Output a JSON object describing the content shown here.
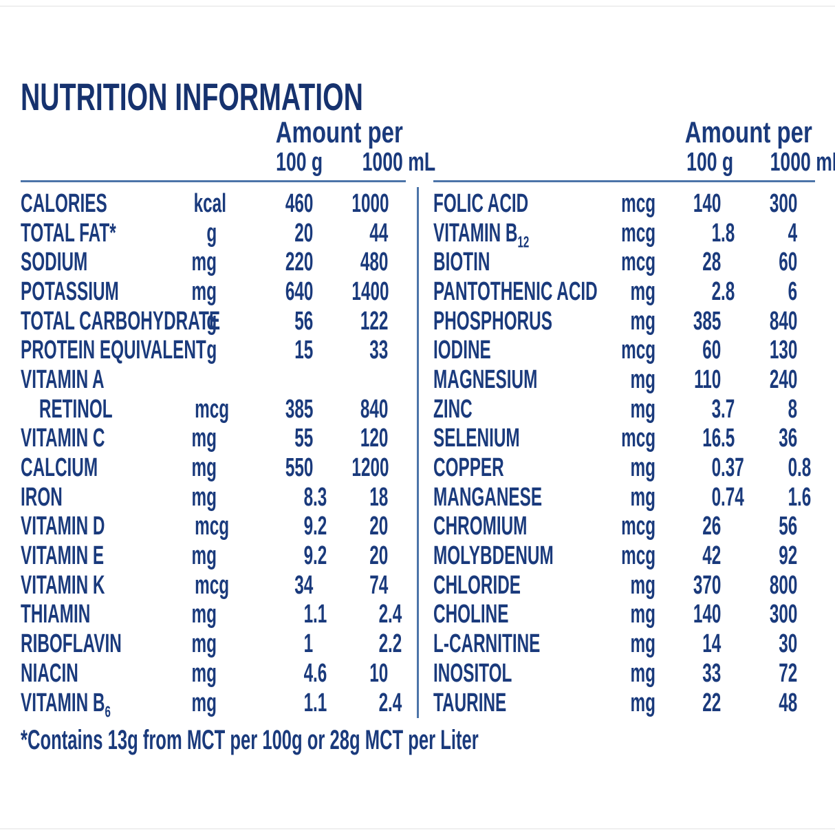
{
  "title": "NUTRITION INFORMATION",
  "table": {
    "header": {
      "amount_per": "Amount per",
      "col_100g": "100 g",
      "col_1000ml": "1000 mL"
    },
    "left_rows": [
      {
        "label": "CALORIES",
        "unit": "kcal",
        "per_100g": "460",
        "per_1000ml": "1000"
      },
      {
        "label": "TOTAL FAT*",
        "unit": "g",
        "per_100g": "20",
        "per_1000ml": "44"
      },
      {
        "label": "SODIUM",
        "unit": "mg",
        "per_100g": "220",
        "per_1000ml": "480"
      },
      {
        "label": "POTASSIUM",
        "unit": "mg",
        "per_100g": "640",
        "per_1000ml": "1400"
      },
      {
        "label": "TOTAL CARBOHYDRATE",
        "unit": "g",
        "per_100g": "56",
        "per_1000ml": "122"
      },
      {
        "label": "PROTEIN EQUIVALENT",
        "unit": "g",
        "per_100g": "15",
        "per_1000ml": "33"
      },
      {
        "label": "VITAMIN A",
        "unit": "",
        "per_100g": "",
        "per_1000ml": ""
      },
      {
        "label": "RETINOL",
        "indent": true,
        "unit": "mcg",
        "per_100g": "385",
        "per_1000ml": "840"
      },
      {
        "label": "VITAMIN C",
        "unit": "mg",
        "per_100g": "55",
        "per_1000ml": "120"
      },
      {
        "label": "CALCIUM",
        "unit": "mg",
        "per_100g": "550",
        "per_1000ml": "1200"
      },
      {
        "label": "IRON",
        "unit": "mg",
        "per_100g": "8.3",
        "per_1000ml": "18"
      },
      {
        "label": "VITAMIN D",
        "unit": "mcg",
        "per_100g": "9.2",
        "per_1000ml": "20"
      },
      {
        "label": "VITAMIN E",
        "unit": "mg",
        "per_100g": "9.2",
        "per_1000ml": "20"
      },
      {
        "label": "VITAMIN K",
        "unit": "mcg",
        "per_100g": "34",
        "per_1000ml": "74"
      },
      {
        "label": "THIAMIN",
        "unit": "mg",
        "per_100g": "1.1",
        "per_1000ml": "2.4"
      },
      {
        "label": "RIBOFLAVIN",
        "unit": "mg",
        "per_100g": "1",
        "per_1000ml": "2.2"
      },
      {
        "label": "NIACIN",
        "unit": "mg",
        "per_100g": "4.6",
        "per_1000ml": "10"
      },
      {
        "label": "VITAMIN B",
        "sub": "6",
        "unit": "mg",
        "per_100g": "1.1",
        "per_1000ml": "2.4"
      }
    ],
    "right_rows": [
      {
        "label": "FOLIC ACID",
        "unit": "mcg",
        "per_100g": "140",
        "per_1000ml": "300"
      },
      {
        "label": "VITAMIN B",
        "sub": "12",
        "unit": "mcg",
        "per_100g": "1.8",
        "per_1000ml": "4"
      },
      {
        "label": "BIOTIN",
        "unit": "mcg",
        "per_100g": "28",
        "per_1000ml": "60"
      },
      {
        "label": "PANTOTHENIC ACID",
        "unit": "mg",
        "per_100g": "2.8",
        "per_1000ml": "6"
      },
      {
        "label": "PHOSPHORUS",
        "unit": "mg",
        "per_100g": "385",
        "per_1000ml": "840"
      },
      {
        "label": "IODINE",
        "unit": "mcg",
        "per_100g": "60",
        "per_1000ml": "130"
      },
      {
        "label": "MAGNESIUM",
        "unit": "mg",
        "per_100g": "110",
        "per_1000ml": "240"
      },
      {
        "label": "ZINC",
        "unit": "mg",
        "per_100g": "3.7",
        "per_1000ml": "8"
      },
      {
        "label": "SELENIUM",
        "unit": "mcg",
        "per_100g": "16.5",
        "per_1000ml": "36"
      },
      {
        "label": "COPPER",
        "unit": "mg",
        "per_100g": "0.37",
        "per_1000ml": "0.8"
      },
      {
        "label": "MANGANESE",
        "unit": "mg",
        "per_100g": "0.74",
        "per_1000ml": "1.6"
      },
      {
        "label": "CHROMIUM",
        "unit": "mcg",
        "per_100g": "26",
        "per_1000ml": "56"
      },
      {
        "label": "MOLYBDENUM",
        "unit": "mcg",
        "per_100g": "42",
        "per_1000ml": "92"
      },
      {
        "label": "CHLORIDE",
        "unit": "mg",
        "per_100g": "370",
        "per_1000ml": "800"
      },
      {
        "label": "CHOLINE",
        "unit": "mg",
        "per_100g": "140",
        "per_1000ml": "300"
      },
      {
        "label": "L-CARNITINE",
        "unit": "mg",
        "per_100g": "14",
        "per_1000ml": "30"
      },
      {
        "label": "INOSITOL",
        "unit": "mg",
        "per_100g": "33",
        "per_1000ml": "72"
      },
      {
        "label": "TAURINE",
        "unit": "mg",
        "per_100g": "22",
        "per_1000ml": "48"
      }
    ]
  },
  "footnote": "*Contains 13g from MCT per 100g or 28g MCT per Liter",
  "colors": {
    "text": "#1a3a7c",
    "title": "#16326e",
    "rule": "#4c74a8"
  }
}
